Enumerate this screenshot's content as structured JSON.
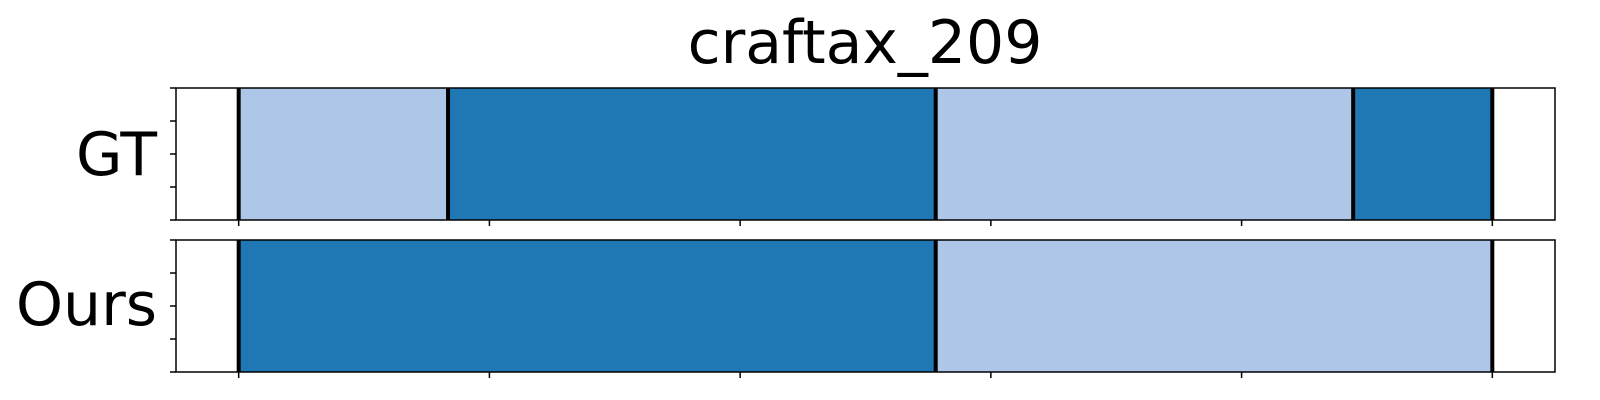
{
  "chart_data": {
    "type": "segmentation-timeline",
    "title": "craftax_209",
    "xlim": [
      -0.05,
      1.05
    ],
    "tick_positions": [
      0.0,
      0.2,
      0.4,
      0.6,
      0.8,
      1.0
    ],
    "grid": false,
    "legend": "none",
    "colors": {
      "dark": "#1f77b4",
      "light": "#aec7e8",
      "boundary": "#000000"
    },
    "rows": [
      {
        "label": "GT",
        "segments": [
          {
            "start": 0.0,
            "end": 0.167,
            "shade": "light"
          },
          {
            "start": 0.167,
            "end": 0.556,
            "shade": "dark"
          },
          {
            "start": 0.556,
            "end": 0.889,
            "shade": "light"
          },
          {
            "start": 0.889,
            "end": 1.0,
            "shade": "dark"
          }
        ]
      },
      {
        "label": "Ours",
        "segments": [
          {
            "start": 0.0,
            "end": 0.556,
            "shade": "dark"
          },
          {
            "start": 0.556,
            "end": 1.0,
            "shade": "light"
          }
        ]
      }
    ]
  }
}
